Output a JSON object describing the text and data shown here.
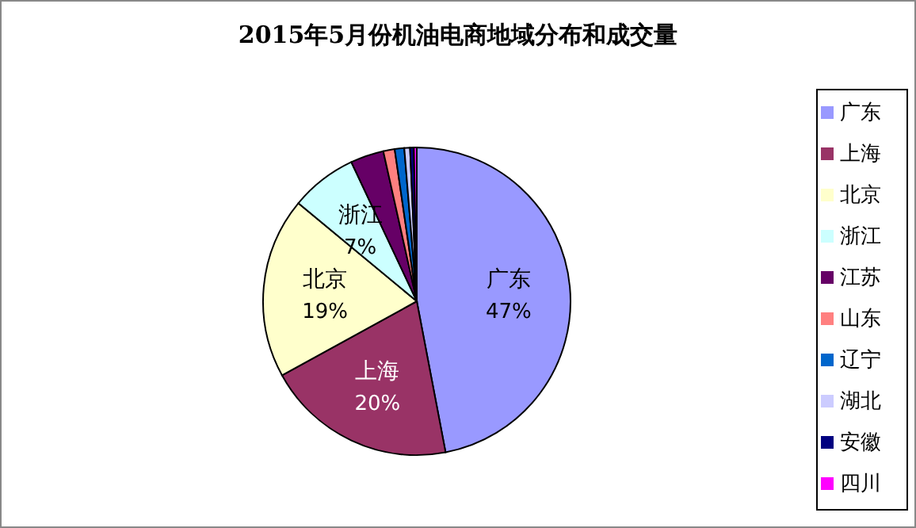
{
  "chart_data": {
    "type": "pie",
    "title": "2015年5月份机油电商地域分布和成交量",
    "categories": [
      "广东",
      "上海",
      "北京",
      "浙江",
      "江苏",
      "山东",
      "辽宁",
      "湖北",
      "安徽",
      "四川"
    ],
    "values": [
      47,
      20,
      19,
      7,
      3.5,
      1.2,
      1,
      0.6,
      0.4,
      0.3
    ],
    "colors": [
      "#9999ff",
      "#993366",
      "#ffffcc",
      "#ccffff",
      "#660066",
      "#ff8080",
      "#0066cc",
      "#ccccff",
      "#000080",
      "#ff00ff"
    ],
    "value_labels": [
      "47%",
      "20%",
      "19%",
      "7%",
      null,
      null,
      null,
      null,
      null,
      null
    ],
    "legend": "right"
  }
}
